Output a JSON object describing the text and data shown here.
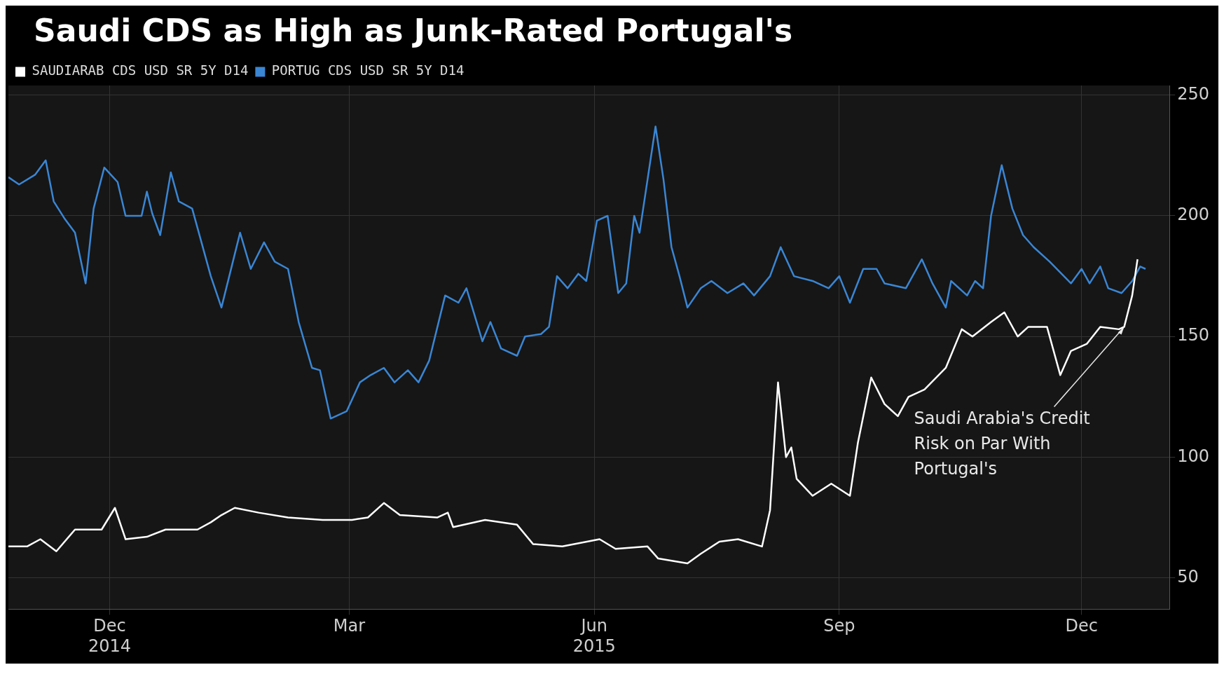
{
  "chart_data": {
    "type": "line",
    "title": "Saudi CDS as High as Junk-Rated Portugal's",
    "legend": "top left",
    "grid": true,
    "marker": "none",
    "line_style": "solid",
    "xlim": [
      "2014-11-07",
      "2016-01-17"
    ],
    "xticks": [
      {
        "value": "2014-12-15",
        "label": "Dec\n2014"
      },
      {
        "value": "2015-03-15",
        "label": "Mar"
      },
      {
        "value": "2015-06-15",
        "label": "Jun\n2015"
      },
      {
        "value": "2015-09-15",
        "label": "Sep"
      },
      {
        "value": "2015-12-15",
        "label": "Dec"
      }
    ],
    "ylim": [
      37,
      254
    ],
    "yticks": [
      50,
      100,
      150,
      200,
      250
    ],
    "annotations": [
      {
        "text": "Saudi Arabia's Credit Risk on Par With Portugal's",
        "x": "2015-12-31",
        "y": 154
      }
    ],
    "series": [
      {
        "name": "SAUDIARAB CDS USD SR 5Y D14",
        "color": "#ffffff",
        "x": [
          "2014-11-07",
          "2014-11-14",
          "2014-11-19",
          "2014-11-25",
          "2014-12-02",
          "2014-12-12",
          "2014-12-17",
          "2014-12-21",
          "2014-12-29",
          "2015-01-05",
          "2015-01-17",
          "2015-01-22",
          "2015-01-26",
          "2015-01-31",
          "2015-02-09",
          "2015-02-20",
          "2015-03-05",
          "2015-03-16",
          "2015-03-22",
          "2015-03-28",
          "2015-04-03",
          "2015-04-17",
          "2015-04-21",
          "2015-04-23",
          "2015-05-05",
          "2015-05-17",
          "2015-05-23",
          "2015-06-03",
          "2015-06-17",
          "2015-06-23",
          "2015-07-05",
          "2015-07-09",
          "2015-07-20",
          "2015-07-25",
          "2015-08-01",
          "2015-08-08",
          "2015-08-17",
          "2015-08-20",
          "2015-08-23",
          "2015-08-26",
          "2015-08-28",
          "2015-08-30",
          "2015-09-05",
          "2015-09-12",
          "2015-09-19",
          "2015-09-22",
          "2015-09-27",
          "2015-10-02",
          "2015-10-07",
          "2015-10-11",
          "2015-10-17",
          "2015-10-25",
          "2015-10-31",
          "2015-11-04",
          "2015-11-11",
          "2015-11-16",
          "2015-11-21",
          "2015-11-25",
          "2015-12-02",
          "2015-12-07",
          "2015-12-11",
          "2015-12-17",
          "2015-12-22",
          "2015-12-29",
          "2015-12-31",
          "2016-01-03",
          "2016-01-05"
        ],
        "values": [
          63,
          63,
          66,
          61,
          70,
          70,
          79,
          66,
          67,
          70,
          70,
          73,
          76,
          79,
          77,
          75,
          74,
          74,
          75,
          81,
          76,
          75,
          77,
          71,
          74,
          72,
          64,
          63,
          66,
          62,
          63,
          58,
          56,
          60,
          65,
          66,
          63,
          78,
          131,
          100,
          104,
          91,
          84,
          89,
          84,
          106,
          133,
          122,
          117,
          125,
          128,
          137,
          153,
          150,
          156,
          160,
          150,
          154,
          154,
          134,
          144,
          147,
          154,
          153,
          154,
          167,
          182
        ]
      },
      {
        "name": "PORTUG CDS USD SR 5Y D14",
        "color": "#3a86d4",
        "x": [
          "2014-11-07",
          "2014-11-11",
          "2014-11-17",
          "2014-11-21",
          "2014-11-24",
          "2014-11-28",
          "2014-12-02",
          "2014-12-06",
          "2014-12-09",
          "2014-12-13",
          "2014-12-18",
          "2014-12-21",
          "2014-12-27",
          "2014-12-29",
          "2014-12-31",
          "2015-01-03",
          "2015-01-07",
          "2015-01-10",
          "2015-01-15",
          "2015-01-22",
          "2015-01-26",
          "2015-02-02",
          "2015-02-06",
          "2015-02-11",
          "2015-02-15",
          "2015-02-20",
          "2015-02-24",
          "2015-03-01",
          "2015-03-04",
          "2015-03-08",
          "2015-03-14",
          "2015-03-19",
          "2015-03-23",
          "2015-03-28",
          "2015-04-01",
          "2015-04-06",
          "2015-04-10",
          "2015-04-14",
          "2015-04-20",
          "2015-04-25",
          "2015-04-28",
          "2015-05-01",
          "2015-05-04",
          "2015-05-07",
          "2015-05-11",
          "2015-05-17",
          "2015-05-20",
          "2015-05-26",
          "2015-05-29",
          "2015-06-01",
          "2015-06-05",
          "2015-06-09",
          "2015-06-12",
          "2015-06-16",
          "2015-06-20",
          "2015-06-24",
          "2015-06-27",
          "2015-06-30",
          "2015-07-02",
          "2015-07-05",
          "2015-07-08",
          "2015-07-11",
          "2015-07-14",
          "2015-07-17",
          "2015-07-20",
          "2015-07-25",
          "2015-07-29",
          "2015-08-04",
          "2015-08-10",
          "2015-08-14",
          "2015-08-20",
          "2015-08-24",
          "2015-08-29",
          "2015-09-05",
          "2015-09-11",
          "2015-09-15",
          "2015-09-19",
          "2015-09-24",
          "2015-09-29",
          "2015-10-02",
          "2015-10-10",
          "2015-10-16",
          "2015-10-20",
          "2015-10-25",
          "2015-10-27",
          "2015-11-02",
          "2015-11-05",
          "2015-11-08",
          "2015-11-11",
          "2015-11-15",
          "2015-11-19",
          "2015-11-23",
          "2015-11-27",
          "2015-12-03",
          "2015-12-11",
          "2015-12-15",
          "2015-12-18",
          "2015-12-22",
          "2015-12-25",
          "2015-12-30",
          "2016-01-03",
          "2016-01-06",
          "2016-01-08"
        ],
        "values": [
          216,
          213,
          217,
          223,
          206,
          199,
          193,
          172,
          203,
          220,
          214,
          200,
          200,
          210,
          201,
          192,
          218,
          206,
          203,
          175,
          162,
          193,
          178,
          189,
          181,
          178,
          156,
          137,
          136,
          116,
          119,
          131,
          134,
          137,
          131,
          136,
          131,
          140,
          167,
          164,
          170,
          159,
          148,
          156,
          145,
          142,
          150,
          151,
          154,
          175,
          170,
          176,
          173,
          198,
          200,
          168,
          172,
          200,
          193,
          215,
          237,
          215,
          187,
          175,
          162,
          170,
          173,
          168,
          172,
          167,
          175,
          187,
          175,
          173,
          170,
          175,
          164,
          178,
          178,
          172,
          170,
          182,
          172,
          162,
          173,
          167,
          173,
          170,
          200,
          221,
          203,
          192,
          187,
          181,
          172,
          178,
          172,
          179,
          170,
          168,
          173,
          179,
          178
        ]
      }
    ]
  }
}
